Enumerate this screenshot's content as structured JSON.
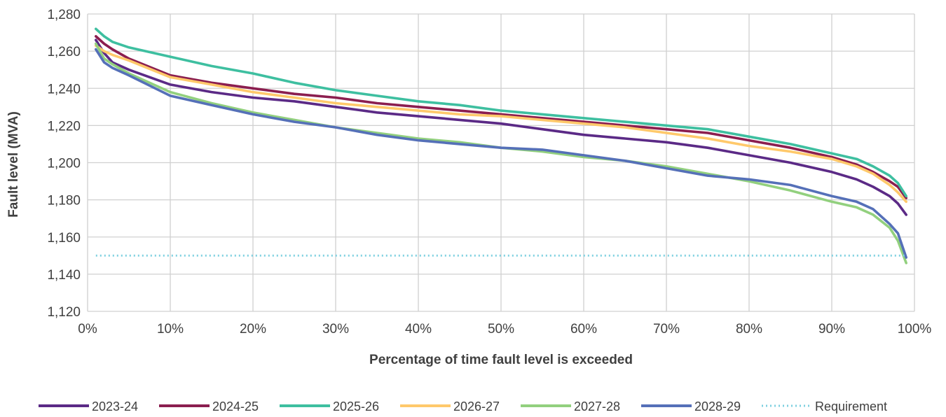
{
  "chart_data": {
    "type": "line",
    "title": "",
    "xlabel": "Percentage of time fault level is exceeded",
    "ylabel": "Fault level (MVA)",
    "x_ticks": [
      "0%",
      "10%",
      "20%",
      "30%",
      "40%",
      "50%",
      "60%",
      "70%",
      "80%",
      "90%",
      "100%"
    ],
    "y_ticks": [
      "1,120",
      "1,140",
      "1,160",
      "1,180",
      "1,200",
      "1,220",
      "1,240",
      "1,260",
      "1,280"
    ],
    "xlim": [
      0,
      100
    ],
    "ylim": [
      1120,
      1280
    ],
    "grid": true,
    "legend_position": "bottom",
    "x": [
      1,
      2,
      3,
      5,
      10,
      15,
      20,
      25,
      30,
      35,
      40,
      45,
      50,
      55,
      60,
      65,
      70,
      75,
      80,
      85,
      90,
      93,
      95,
      97,
      98,
      99
    ],
    "series": [
      {
        "name": "2023-24",
        "color": "#5b2a86",
        "style": "solid",
        "values": [
          1266,
          1259,
          1254,
          1250,
          1242,
          1238,
          1235,
          1233,
          1230,
          1227,
          1225,
          1223,
          1221,
          1218,
          1215,
          1213,
          1211,
          1208,
          1204,
          1200,
          1195,
          1191,
          1187,
          1182,
          1178,
          1172
        ]
      },
      {
        "name": "2024-25",
        "color": "#8b1e4f",
        "style": "solid",
        "values": [
          1268,
          1264,
          1261,
          1256,
          1247,
          1243,
          1240,
          1237,
          1235,
          1232,
          1230,
          1228,
          1226,
          1224,
          1222,
          1220,
          1218,
          1216,
          1212,
          1208,
          1203,
          1199,
          1195,
          1190,
          1187,
          1181
        ]
      },
      {
        "name": "2025-26",
        "color": "#3ebfa0",
        "style": "solid",
        "values": [
          1272,
          1268,
          1265,
          1262,
          1257,
          1252,
          1248,
          1243,
          1239,
          1236,
          1233,
          1231,
          1228,
          1226,
          1224,
          1222,
          1220,
          1218,
          1214,
          1210,
          1205,
          1202,
          1198,
          1193,
          1189,
          1182
        ]
      },
      {
        "name": "2026-27",
        "color": "#ffc96b",
        "style": "solid",
        "values": [
          1263,
          1260,
          1258,
          1255,
          1246,
          1242,
          1238,
          1235,
          1232,
          1230,
          1228,
          1226,
          1225,
          1223,
          1221,
          1219,
          1216,
          1213,
          1209,
          1206,
          1202,
          1198,
          1194,
          1188,
          1184,
          1179
        ]
      },
      {
        "name": "2027-28",
        "color": "#92d07e",
        "style": "solid",
        "values": [
          1264,
          1256,
          1253,
          1248,
          1238,
          1232,
          1227,
          1223,
          1219,
          1216,
          1213,
          1211,
          1208,
          1206,
          1203,
          1201,
          1198,
          1194,
          1190,
          1185,
          1179,
          1176,
          1172,
          1165,
          1158,
          1146
        ]
      },
      {
        "name": "2028-29",
        "color": "#5570b8",
        "style": "solid",
        "values": [
          1261,
          1254,
          1251,
          1247,
          1236,
          1231,
          1226,
          1222,
          1219,
          1215,
          1212,
          1210,
          1208,
          1207,
          1204,
          1201,
          1197,
          1193,
          1191,
          1188,
          1182,
          1179,
          1175,
          1167,
          1162,
          1149
        ]
      },
      {
        "name": "Requirement",
        "color": "#7fd0e0",
        "style": "dotted",
        "values": [
          1150,
          1150,
          1150,
          1150,
          1150,
          1150,
          1150,
          1150,
          1150,
          1150,
          1150,
          1150,
          1150,
          1150,
          1150,
          1150,
          1150,
          1150,
          1150,
          1150,
          1150,
          1150,
          1150,
          1150,
          1150,
          1150
        ]
      }
    ]
  }
}
